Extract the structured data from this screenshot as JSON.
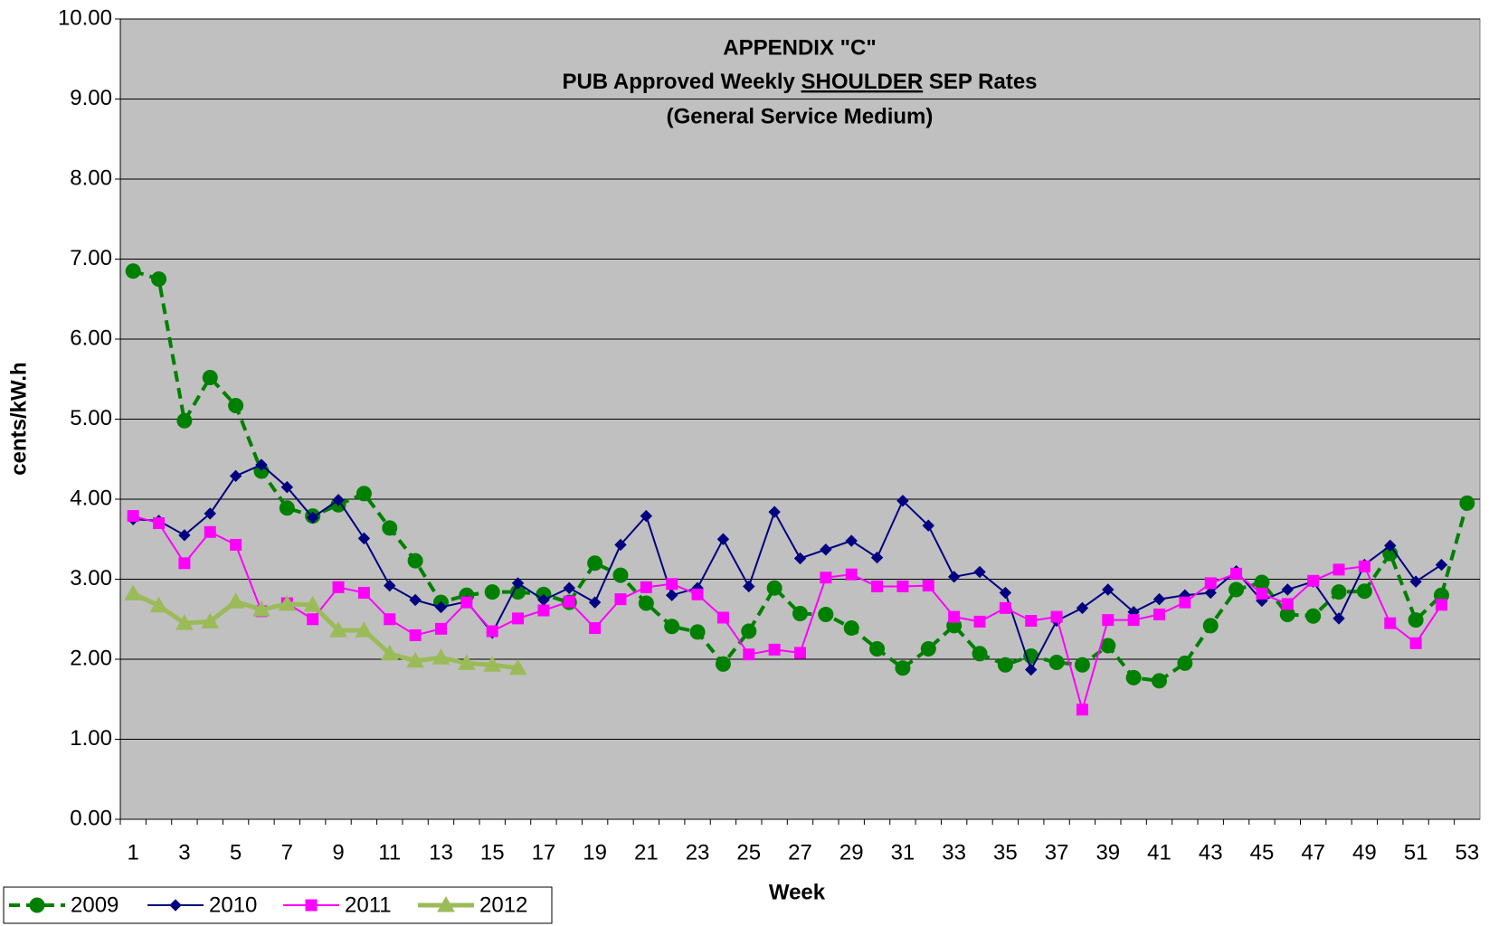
{
  "chart_data": {
    "type": "line",
    "title": {
      "line1": "APPENDIX \"C\"",
      "line2": [
        "PUB Approved Weekly ",
        "SHOULDER",
        " SEP Rates"
      ],
      "line3": "(General Service Medium)"
    },
    "x_label": "Week",
    "y_label": "cents/kW.h",
    "categories": [
      1,
      null,
      3,
      null,
      5,
      null,
      7,
      null,
      9,
      null,
      11,
      null,
      13,
      null,
      15,
      null,
      17,
      null,
      19,
      null,
      21,
      null,
      23,
      null,
      25,
      null,
      27,
      null,
      29,
      null,
      31,
      null,
      33,
      null,
      35,
      null,
      37,
      null,
      39,
      null,
      41,
      null,
      43,
      null,
      45,
      null,
      47,
      null,
      49,
      null,
      51,
      null,
      53
    ],
    "ylim": [
      0,
      10
    ],
    "yticks": [
      {
        "value": 0,
        "label": "0.00"
      },
      {
        "value": 1,
        "label": "1.00"
      },
      {
        "value": 2,
        "label": "2.00"
      },
      {
        "value": 3,
        "label": "3.00"
      },
      {
        "value": 4,
        "label": "4.00"
      },
      {
        "value": 5,
        "label": "5.00"
      },
      {
        "value": 6,
        "label": "6.00"
      },
      {
        "value": 7,
        "label": "7.00"
      },
      {
        "value": 8,
        "label": "8.00"
      },
      {
        "value": 9,
        "label": "9.00"
      },
      {
        "value": 10,
        "label": "10.00"
      }
    ],
    "grid": true,
    "legend": "bottom-left",
    "series": [
      {
        "name": "2009",
        "color": "#008000",
        "marker": "circle",
        "dashed": true,
        "line_width": 4,
        "values": [
          6.85,
          6.75,
          4.98,
          5.52,
          5.17,
          4.35,
          3.89,
          3.79,
          3.93,
          4.07,
          3.64,
          3.23,
          2.71,
          2.8,
          2.84,
          2.84,
          2.81,
          2.71,
          3.2,
          3.05,
          2.7,
          2.41,
          2.34,
          1.94,
          2.35,
          2.89,
          2.57,
          2.56,
          2.39,
          2.13,
          1.89,
          2.13,
          2.42,
          2.07,
          1.93,
          2.04,
          1.96,
          1.93,
          2.17,
          1.77,
          1.73,
          1.95,
          2.42,
          2.87,
          2.96,
          2.56,
          2.54,
          2.84,
          2.85,
          3.32,
          2.49,
          2.8,
          3.95
        ]
      },
      {
        "name": "2010",
        "color": "#000080",
        "marker": "diamond",
        "dashed": false,
        "line_width": 2,
        "values": [
          3.75,
          3.73,
          3.55,
          3.82,
          4.29,
          4.43,
          4.15,
          3.77,
          3.99,
          3.51,
          2.92,
          2.74,
          2.65,
          2.72,
          2.33,
          2.95,
          2.74,
          2.89,
          2.71,
          3.43,
          3.79,
          2.8,
          2.89,
          3.5,
          2.91,
          3.84,
          3.26,
          3.37,
          3.48,
          3.27,
          3.98,
          3.67,
          3.03,
          3.09,
          2.83,
          1.87,
          2.48,
          2.64,
          2.87,
          2.59,
          2.75,
          2.8,
          2.83,
          3.1,
          2.73,
          2.87,
          2.97,
          2.51,
          3.18,
          3.42,
          2.97,
          3.18,
          null
        ]
      },
      {
        "name": "2011",
        "color": "#ff00ff",
        "marker": "square",
        "dashed": false,
        "line_width": 2,
        "values": [
          3.79,
          3.7,
          3.2,
          3.59,
          3.43,
          2.6,
          2.7,
          2.5,
          2.9,
          2.83,
          2.5,
          2.3,
          2.38,
          2.71,
          2.35,
          2.51,
          2.61,
          2.72,
          2.39,
          2.75,
          2.9,
          2.94,
          2.81,
          2.52,
          2.06,
          2.12,
          2.08,
          3.02,
          3.06,
          2.91,
          2.91,
          2.92,
          2.53,
          2.47,
          2.64,
          2.48,
          2.53,
          1.37,
          2.49,
          2.49,
          2.56,
          2.71,
          2.95,
          3.07,
          2.82,
          2.69,
          2.98,
          3.12,
          3.16,
          2.45,
          2.2,
          2.68,
          null
        ]
      },
      {
        "name": "2012",
        "color": "#9bbb59",
        "marker": "triangle",
        "dashed": false,
        "line_width": 5,
        "values": [
          2.82,
          2.67,
          2.45,
          2.47,
          2.72,
          2.62,
          2.69,
          2.68,
          2.36,
          2.36,
          2.07,
          1.98,
          2.02,
          1.95,
          1.93,
          1.89,
          null,
          null,
          null,
          null,
          null,
          null,
          null,
          null,
          null,
          null,
          null,
          null,
          null,
          null,
          null,
          null,
          null,
          null,
          null,
          null,
          null,
          null,
          null,
          null,
          null,
          null,
          null,
          null,
          null,
          null,
          null,
          null,
          null,
          null,
          null,
          null,
          null
        ]
      }
    ]
  }
}
